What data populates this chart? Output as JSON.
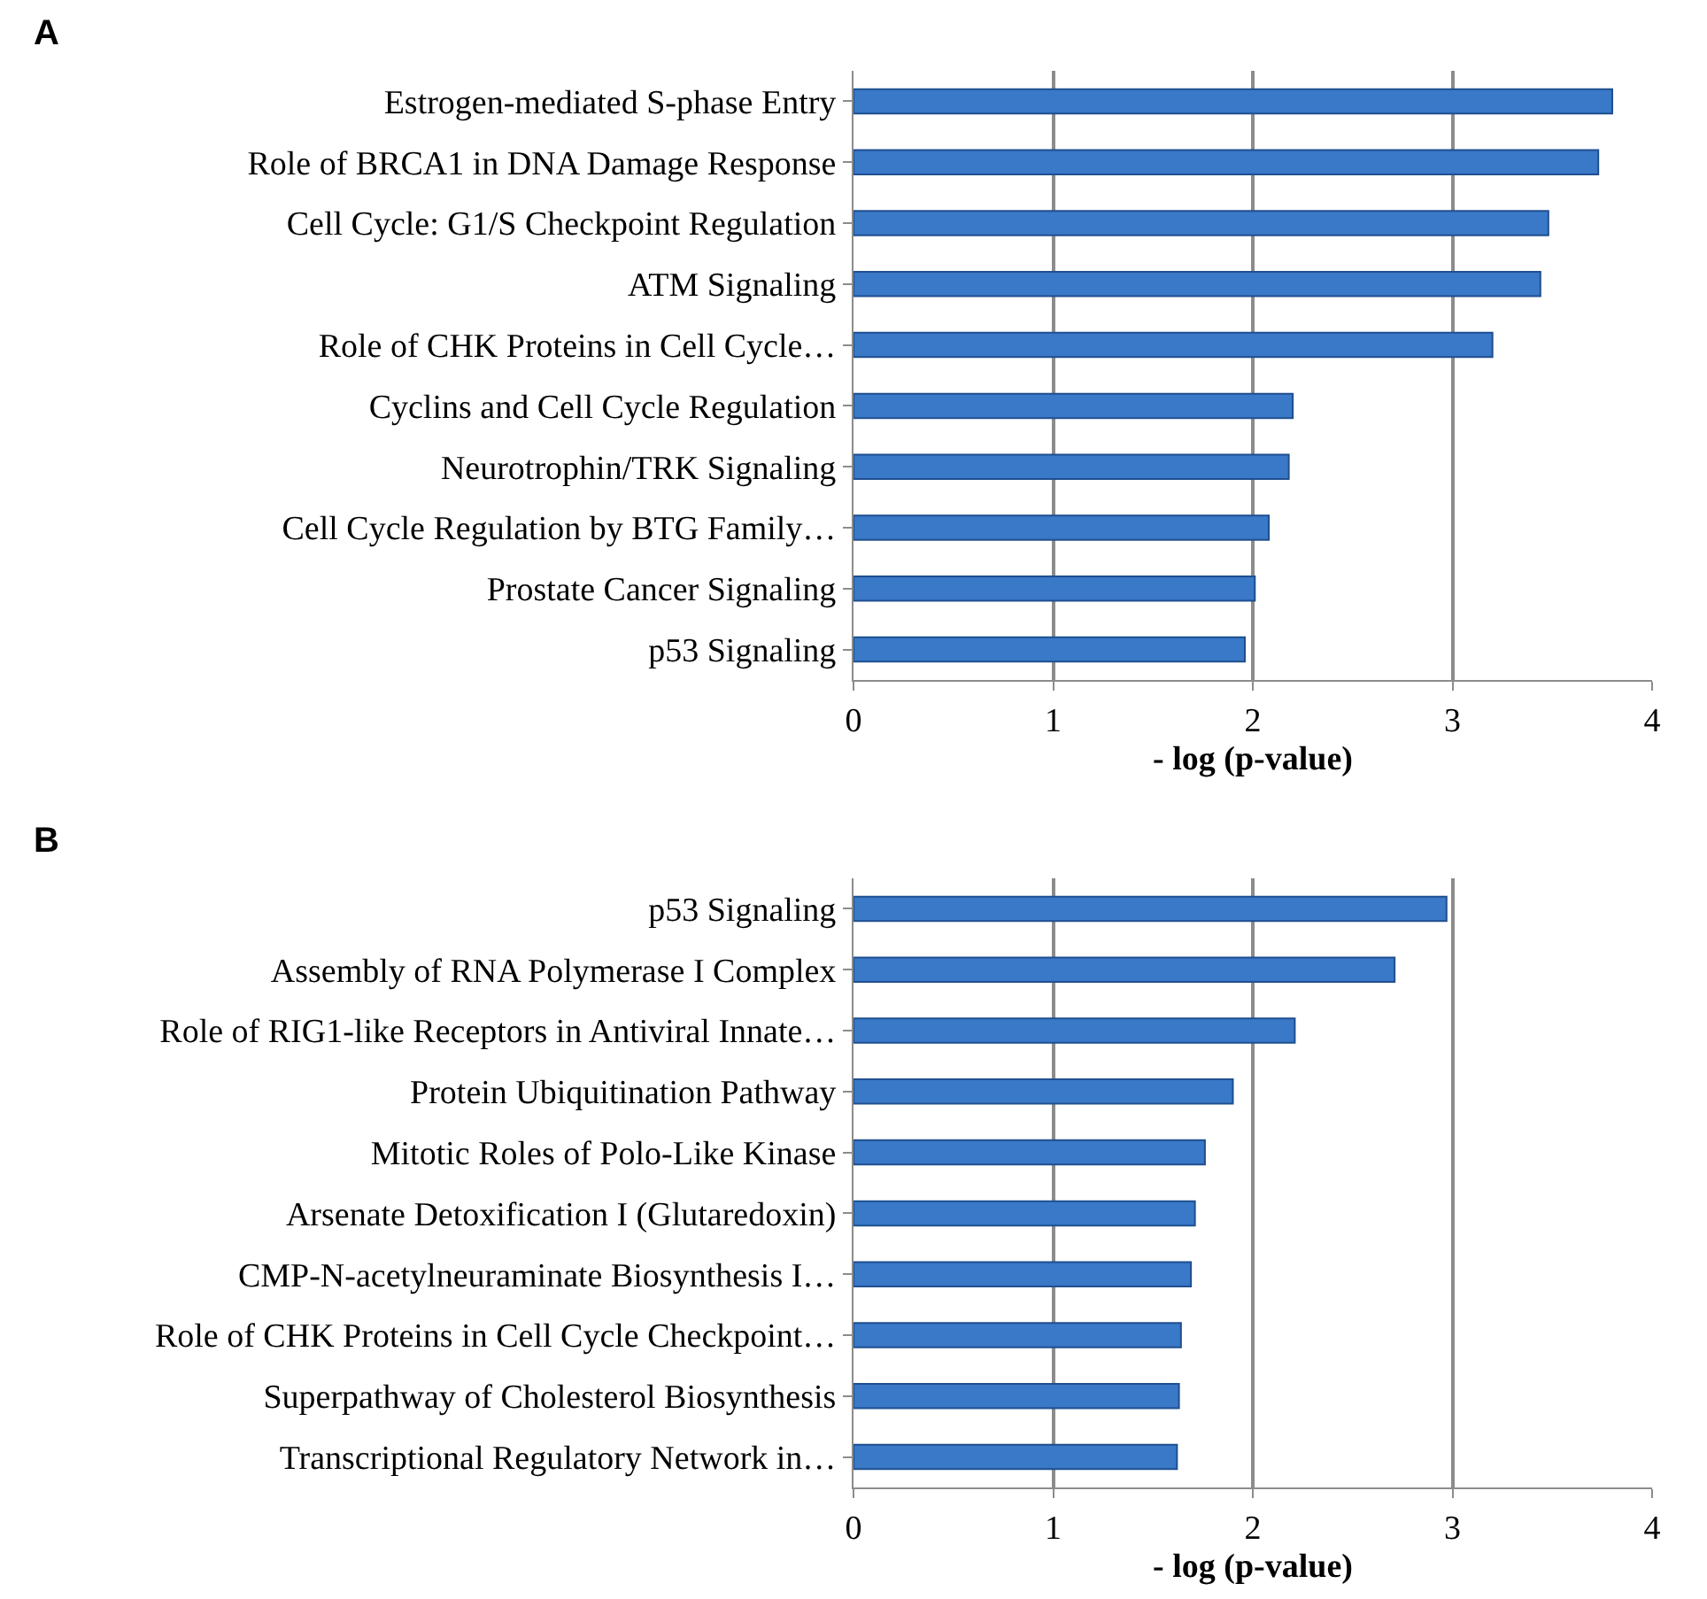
{
  "chart_data": [
    {
      "type": "bar",
      "title": "A",
      "orientation": "horizontal",
      "xlabel": "- log (p-value)",
      "color": "#3a78c8",
      "grid": "x",
      "categories": [
        "Estrogen-mediated S-phase Entry",
        "Role of BRCA1 in DNA Damage Response",
        "Cell Cycle: G1/S Checkpoint Regulation",
        "ATM Signaling",
        "Role of CHK Proteins in Cell Cycle…",
        "Cyclins and Cell Cycle Regulation",
        "Neurotrophin/TRK Signaling",
        "Cell Cycle Regulation by BTG Family…",
        "Prostate Cancer Signaling",
        "p53 Signaling"
      ],
      "values": [
        3.8,
        3.73,
        3.48,
        3.44,
        3.2,
        2.2,
        2.18,
        2.08,
        2.01,
        1.96
      ],
      "xlim": [
        0,
        4
      ],
      "xticks": [
        0,
        1,
        2,
        3,
        4
      ]
    },
    {
      "type": "bar",
      "title": "B",
      "orientation": "horizontal",
      "xlabel": "- log (p-value)",
      "color": "#3a78c8",
      "grid": "x",
      "categories": [
        "p53 Signaling",
        "Assembly of RNA Polymerase I Complex",
        "Role of RIG1-like Receptors in Antiviral Innate…",
        "Protein Ubiquitination Pathway",
        "Mitotic Roles of Polo-Like Kinase",
        "Arsenate Detoxification I (Glutaredoxin)",
        "CMP-N-acetylneuraminate Biosynthesis I…",
        "Role of CHK Proteins in Cell Cycle Checkpoint…",
        "Superpathway of Cholesterol Biosynthesis",
        "Transcriptional Regulatory Network in…"
      ],
      "values": [
        2.97,
        2.71,
        2.21,
        1.9,
        1.76,
        1.71,
        1.69,
        1.64,
        1.63,
        1.62
      ],
      "xlim": [
        0,
        4
      ],
      "xticks": [
        0,
        1,
        2,
        3,
        4
      ]
    }
  ]
}
